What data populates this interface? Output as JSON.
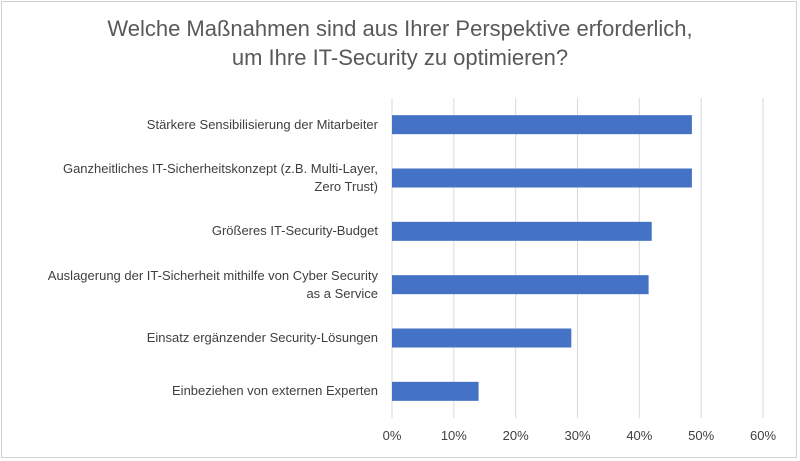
{
  "chart_data": {
    "type": "bar",
    "orientation": "horizontal",
    "title": [
      "Welche Maßnahmen sind aus Ihrer Perspektive erforderlich,",
      "um Ihre IT-Security zu optimieren?"
    ],
    "categories": [
      [
        "Stärkere Sensibilisierung der Mitarbeiter"
      ],
      [
        "Ganzheitliches IT-Sicherheitskonzept (z.B. Multi-Layer,",
        "Zero Trust)"
      ],
      [
        "Größeres IT-Security-Budget"
      ],
      [
        "Auslagerung der IT-Sicherheit mithilfe von Cyber Security",
        "as a Service"
      ],
      [
        "Einsatz ergänzender Security-Lösungen"
      ],
      [
        "Einbeziehen von externen Experten"
      ]
    ],
    "values": [
      48.5,
      48.5,
      42,
      41.5,
      29,
      14
    ],
    "xlim": [
      0,
      60
    ],
    "xticks": [
      "0%",
      "10%",
      "20%",
      "30%",
      "40%",
      "50%",
      "60%"
    ],
    "bar_color": "#4472c4",
    "grid": true
  }
}
